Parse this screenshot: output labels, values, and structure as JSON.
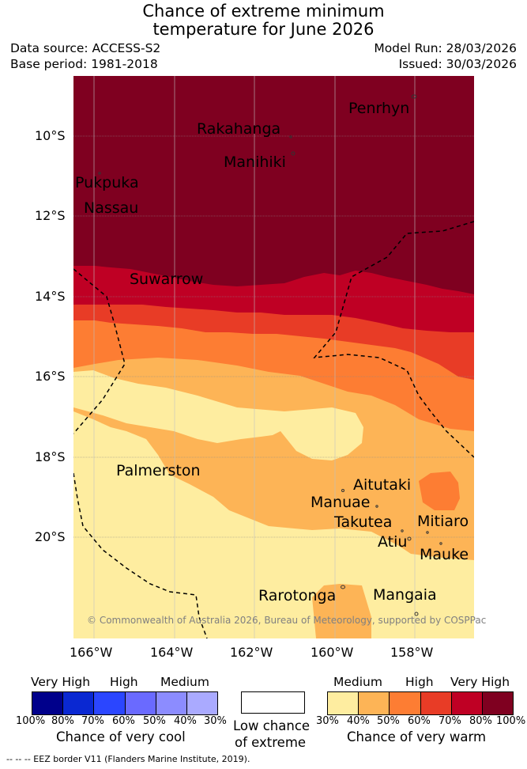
{
  "title": {
    "line1": "Chance of extreme minimum",
    "line2": "temperature for June 2026"
  },
  "meta": {
    "data_source": "Data source: ACCESS-S2",
    "base_period": "Base period: 1981-2018",
    "model_run": "Model Run: 28/03/2026",
    "issued": "Issued: 30/03/2026"
  },
  "map": {
    "latitude_labels": [
      "10°S",
      "12°S",
      "14°S",
      "16°S",
      "18°S",
      "20°S"
    ],
    "longitude_labels": [
      "166°W",
      "164°W",
      "162°W",
      "160°W",
      "158°W"
    ],
    "places": [
      "Penrhyn",
      "Rakahanga",
      "Manihiki",
      "Pukpuka",
      "Nassau",
      "Suwarrow",
      "Palmerston",
      "Aitutaki",
      "Manuae",
      "Takutea",
      "Mitiaro",
      "Atiu",
      "Mauke",
      "Rarotonga",
      "Mangaia"
    ],
    "copyright": "© Commonwealth of Australia 2026, Bureau of Meteorology, supported by COSPPac"
  },
  "legend": {
    "cool": {
      "headers": [
        "Very High",
        "High",
        "Medium"
      ],
      "ticks": [
        "100%",
        "80%",
        "70%",
        "60%",
        "50%",
        "40%",
        "30%"
      ],
      "colors": [
        "#00008b",
        "#0a28d2",
        "#2b46ff",
        "#6a6aff",
        "#8c8cff",
        "#aaaaff"
      ],
      "label": "Chance of very cool"
    },
    "neutral": {
      "label_line1": "Low chance",
      "label_line2": "of extreme"
    },
    "warm": {
      "headers": [
        "Medium",
        "High",
        "Very High"
      ],
      "ticks": [
        "30%",
        "40%",
        "50%",
        "60%",
        "70%",
        "80%",
        "100%"
      ],
      "colors": [
        "#feeda0",
        "#fdb456",
        "#fd7d33",
        "#e83c26",
        "#bf0024",
        "#7f0020"
      ],
      "label": "Chance of very warm"
    }
  },
  "footer": "--  --  -- EEZ border V11 (Flanders Marine Institute, 2019)."
}
